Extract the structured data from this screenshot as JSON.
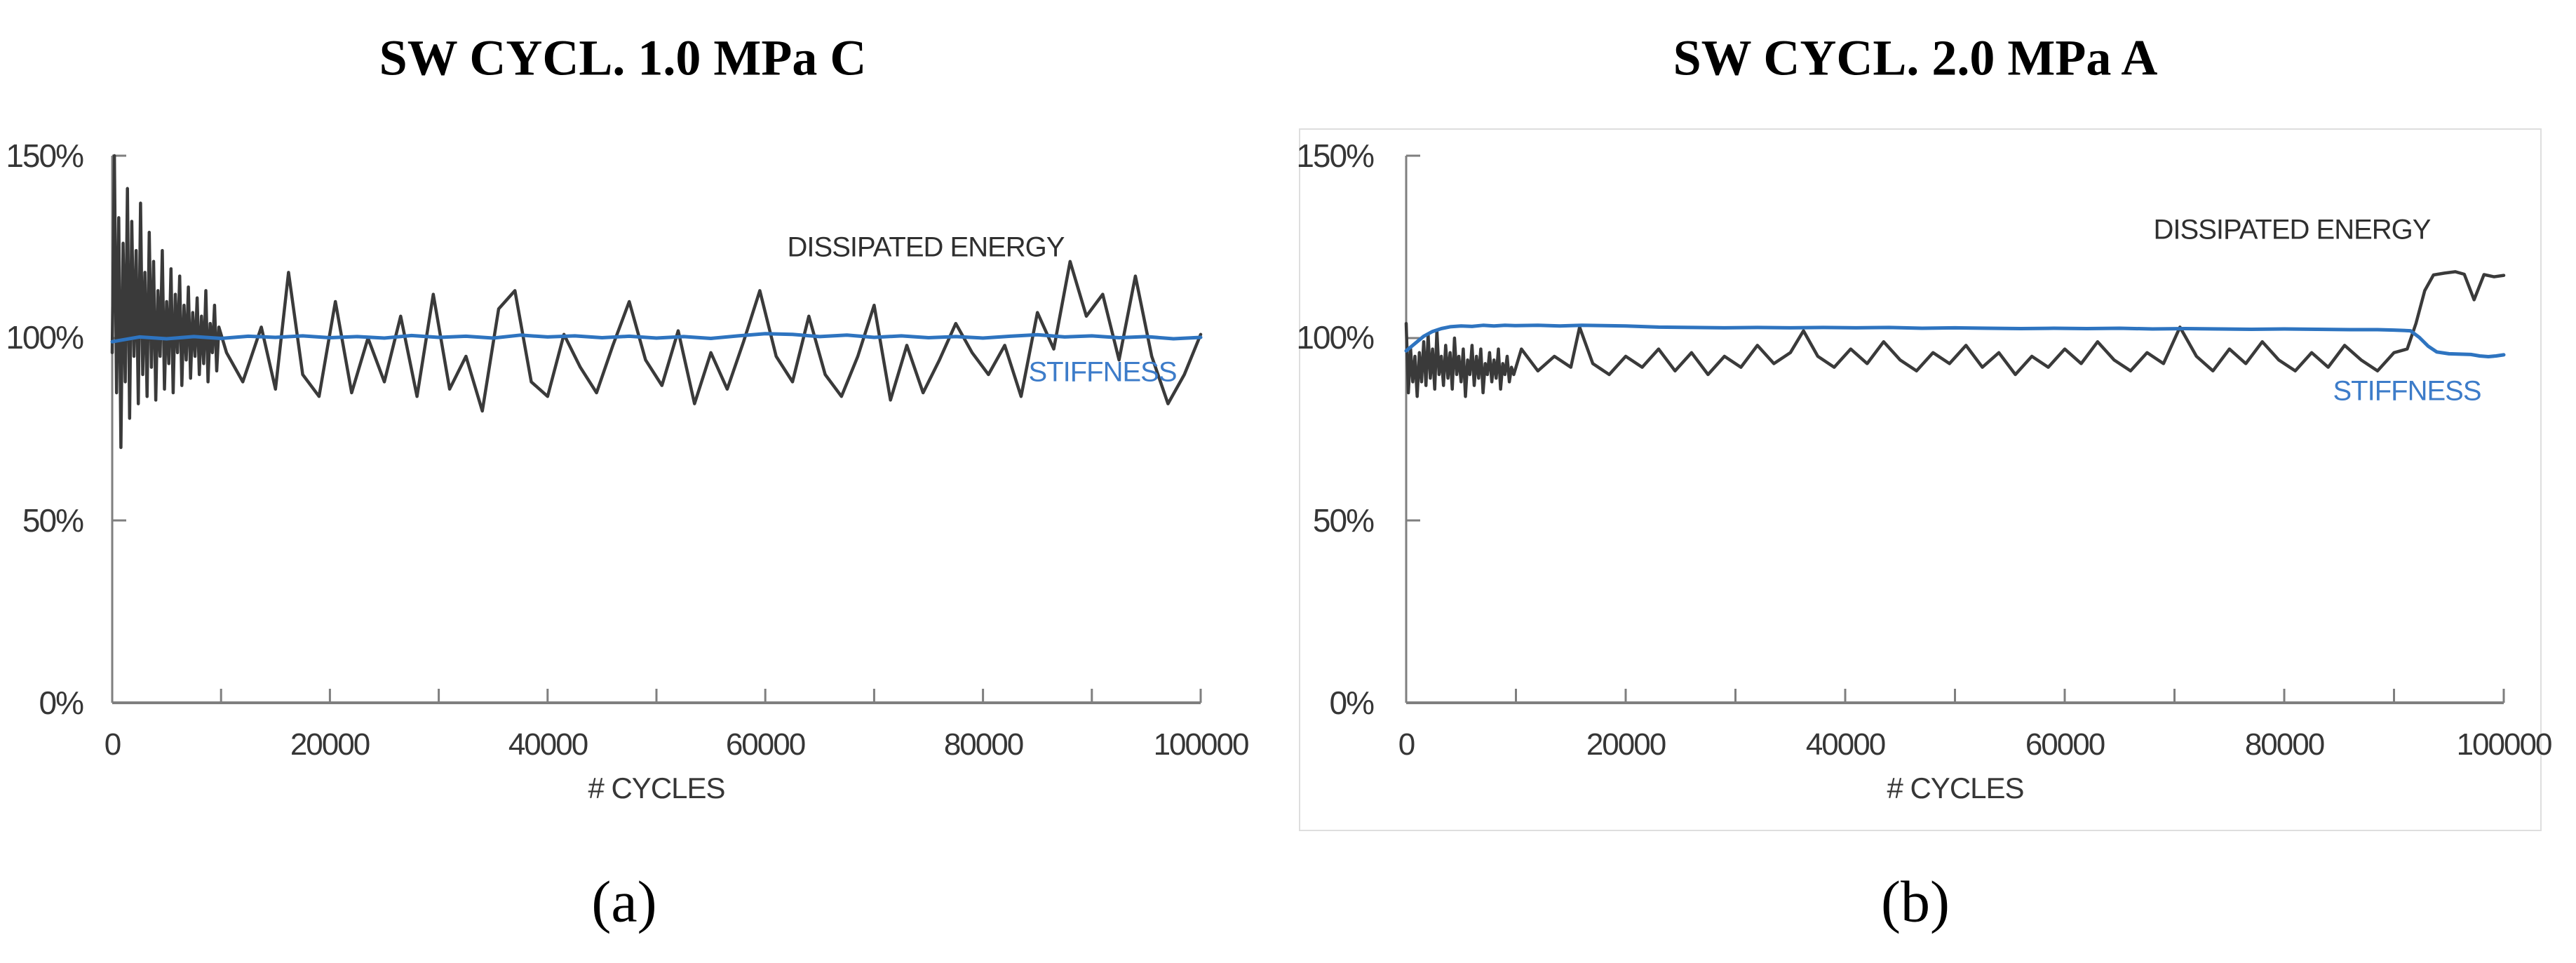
{
  "figure": {
    "caption_a": "(a)",
    "caption_b": "(b)"
  },
  "colors": {
    "dissipated_energy": "#3a3a3a",
    "stiffness": "#2e74c0",
    "axis": "#7f7f7f",
    "panel_border": "#dedede"
  },
  "chart_data": [
    {
      "type": "line",
      "title": "SW CYCL. 1.0 MPa C",
      "xlabel": "# CYCLES",
      "caption": "(a)",
      "xlim": [
        0,
        100000
      ],
      "ylim": [
        0,
        150
      ],
      "grid": false,
      "x_tick_labels": [
        "0",
        "20000",
        "40000",
        "60000",
        "80000",
        "100000"
      ],
      "x_minor_tick_step": 10000,
      "y_tick_labels": [
        "150%",
        "100%",
        "50%",
        "0%"
      ],
      "y_tick_values": [
        150,
        100,
        50,
        0
      ],
      "series": [
        {
          "name": "DISSIPATED ENERGY",
          "color": "#3a3a3a",
          "x": [
            0,
            200,
            400,
            600,
            800,
            1000,
            1200,
            1400,
            1600,
            1800,
            2000,
            2200,
            2400,
            2600,
            2800,
            3000,
            3200,
            3400,
            3600,
            3800,
            4000,
            4200,
            4400,
            4600,
            4800,
            5000,
            5200,
            5400,
            5600,
            5800,
            6000,
            6200,
            6400,
            6600,
            6800,
            7000,
            7200,
            7400,
            7600,
            7800,
            8000,
            8200,
            8400,
            8600,
            8800,
            9000,
            9200,
            9400,
            9600,
            9800,
            10500,
            12000,
            13700,
            15000,
            16200,
            17500,
            19000,
            20500,
            22000,
            23500,
            25000,
            26500,
            28000,
            29500,
            31000,
            32500,
            34000,
            35500,
            37000,
            38500,
            40000,
            41500,
            43000,
            44500,
            46000,
            47500,
            49000,
            50500,
            52000,
            53500,
            55000,
            56500,
            58000,
            59500,
            61000,
            62500,
            64000,
            65500,
            67000,
            68500,
            70000,
            71500,
            73000,
            74500,
            76000,
            77500,
            79000,
            80500,
            82000,
            83500,
            85000,
            86500,
            88000,
            89500,
            91000,
            92500,
            94000,
            95500,
            97000,
            98500,
            100000
          ],
          "y": [
            96,
            150,
            85,
            133,
            70,
            126,
            88,
            141,
            78,
            132,
            95,
            124,
            82,
            137,
            90,
            118,
            84,
            129,
            92,
            121,
            83,
            113,
            95,
            124,
            86,
            110,
            93,
            119,
            85,
            112,
            96,
            117,
            87,
            109,
            94,
            114,
            89,
            107,
            95,
            111,
            90,
            106,
            93,
            113,
            88,
            104,
            96,
            109,
            91,
            103,
            96,
            88,
            103,
            86,
            118,
            90,
            84,
            110,
            85,
            100,
            88,
            106,
            84,
            112,
            86,
            95,
            80,
            108,
            113,
            88,
            84,
            101,
            92,
            85,
            98,
            110,
            94,
            87,
            102,
            82,
            96,
            86,
            99,
            113,
            95,
            88,
            106,
            90,
            84,
            95,
            109,
            83,
            98,
            85,
            94,
            104,
            96,
            90,
            98,
            84,
            107,
            97,
            121,
            106,
            112,
            94,
            117,
            95,
            82,
            90,
            101
          ]
        },
        {
          "name": "STIFFNESS",
          "color": "#2e74c0",
          "x": [
            0,
            2500,
            5000,
            7500,
            10000,
            12500,
            15000,
            17500,
            20000,
            22500,
            25000,
            27500,
            30000,
            32500,
            35000,
            37500,
            40000,
            42500,
            45000,
            47500,
            50000,
            52500,
            55000,
            57500,
            60000,
            62500,
            65000,
            67500,
            70000,
            72500,
            75000,
            77500,
            80000,
            82500,
            85000,
            87500,
            90000,
            92500,
            95000,
            97500,
            100000
          ],
          "y": [
            99.0,
            100.3,
            99.8,
            100.4,
            99.9,
            100.5,
            100.2,
            100.6,
            100.1,
            100.4,
            100.0,
            100.7,
            100.2,
            100.5,
            100.0,
            100.8,
            100.3,
            100.6,
            100.1,
            100.5,
            100.0,
            100.4,
            99.9,
            100.6,
            101.2,
            101.0,
            100.4,
            100.8,
            100.2,
            100.6,
            100.1,
            100.4,
            100.0,
            100.5,
            100.9,
            100.3,
            100.6,
            100.1,
            100.4,
            99.8,
            100.2
          ]
        }
      ]
    },
    {
      "type": "line",
      "title": "SW CYCL. 2.0 MPa A",
      "xlabel": "# CYCLES",
      "caption": "(b)",
      "xlim": [
        0,
        100000
      ],
      "ylim": [
        0,
        150
      ],
      "grid": false,
      "x_tick_labels": [
        "0",
        "20000",
        "40000",
        "60000",
        "80000",
        "100000"
      ],
      "x_minor_tick_step": 10000,
      "y_tick_labels": [
        "150%",
        "100%",
        "50%",
        "0%"
      ],
      "y_tick_values": [
        150,
        100,
        50,
        0
      ],
      "series": [
        {
          "name": "DISSIPATED ENERGY",
          "color": "#3a3a3a",
          "x": [
            0,
            200,
            400,
            600,
            800,
            1000,
            1200,
            1400,
            1600,
            1800,
            2000,
            2200,
            2400,
            2600,
            2800,
            3000,
            3200,
            3400,
            3600,
            3800,
            4000,
            4200,
            4400,
            4600,
            4800,
            5000,
            5200,
            5400,
            5600,
            5800,
            6000,
            6200,
            6400,
            6600,
            6800,
            7000,
            7200,
            7400,
            7600,
            7800,
            8000,
            8200,
            8400,
            8600,
            8800,
            9000,
            9200,
            9400,
            9600,
            9800,
            10500,
            12000,
            13500,
            15000,
            15800,
            17000,
            18500,
            20000,
            21500,
            23000,
            24500,
            26000,
            27500,
            29000,
            30500,
            32000,
            33500,
            35000,
            36200,
            37500,
            39000,
            40500,
            42000,
            43500,
            45000,
            46500,
            48000,
            49500,
            51000,
            52500,
            54000,
            55500,
            57000,
            58500,
            60000,
            61500,
            63000,
            64500,
            66000,
            67500,
            69000,
            70500,
            72000,
            73500,
            75000,
            76500,
            78000,
            79500,
            81000,
            82500,
            84000,
            85500,
            87000,
            88500,
            90000,
            91200,
            92000,
            92800,
            93600,
            94600,
            95600,
            96400,
            97300,
            98200,
            99100,
            100000
          ],
          "y": [
            104,
            85,
            97,
            88,
            95,
            84,
            96,
            88,
            99,
            87,
            101,
            89,
            97,
            86,
            102,
            90,
            95,
            87,
            98,
            89,
            96,
            86,
            100,
            90,
            95,
            88,
            97,
            84,
            94,
            90,
            98,
            87,
            95,
            89,
            97,
            85,
            93,
            90,
            96,
            88,
            94,
            89,
            97,
            86,
            93,
            90,
            95,
            88,
            92,
            90,
            97,
            91,
            95,
            92,
            103,
            93,
            90,
            95,
            92,
            97,
            91,
            96,
            90,
            95,
            92,
            98,
            93,
            96,
            102,
            95,
            92,
            97,
            93,
            99,
            94,
            91,
            96,
            93,
            98,
            92,
            96,
            90,
            95,
            92,
            97,
            93,
            99,
            94,
            91,
            96,
            93,
            103,
            95,
            91,
            97,
            93,
            99,
            94,
            91,
            96,
            92,
            98,
            94,
            91,
            96,
            97,
            104,
            113,
            117.3,
            117.8,
            118.2,
            117.5,
            110.5,
            117.4,
            116.8,
            117.2
          ]
        },
        {
          "name": "STIFFNESS",
          "color": "#2e74c0",
          "x": [
            0,
            800,
            1600,
            2400,
            3200,
            4000,
            5000,
            6000,
            7000,
            8000,
            9000,
            10000,
            12000,
            14000,
            16000,
            18000,
            20000,
            23000,
            26000,
            29000,
            32000,
            35000,
            38000,
            41000,
            44000,
            47000,
            50000,
            53000,
            56000,
            59000,
            62000,
            65000,
            68000,
            71000,
            74000,
            77000,
            80000,
            83000,
            86000,
            88500,
            90000,
            91500,
            92300,
            93100,
            93900,
            95000,
            96000,
            97000,
            97800,
            98600,
            99300,
            100000
          ],
          "y": [
            96.5,
            98.5,
            100.5,
            101.8,
            102.6,
            103.1,
            103.3,
            103.2,
            103.5,
            103.3,
            103.5,
            103.4,
            103.5,
            103.3,
            103.5,
            103.4,
            103.3,
            103.0,
            102.9,
            102.8,
            102.9,
            102.8,
            102.9,
            102.8,
            102.9,
            102.7,
            102.8,
            102.7,
            102.6,
            102.7,
            102.6,
            102.7,
            102.5,
            102.6,
            102.5,
            102.4,
            102.5,
            102.4,
            102.3,
            102.3,
            102.2,
            102.0,
            100.2,
            97.8,
            96.2,
            95.7,
            95.6,
            95.5,
            95.1,
            94.9,
            95.1,
            95.4
          ]
        }
      ]
    }
  ]
}
